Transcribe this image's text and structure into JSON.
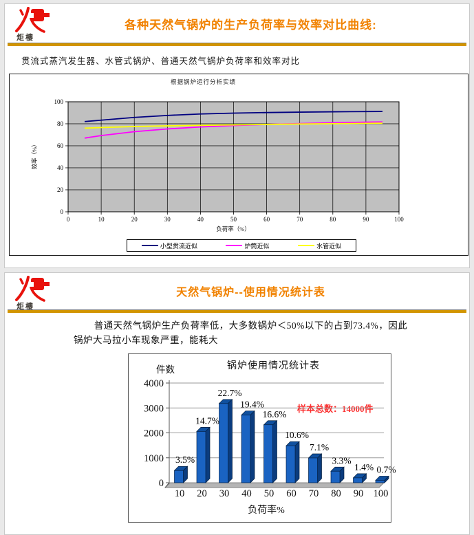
{
  "theme": {
    "page_bg": "#e9e9e9",
    "title_color": "#f18200",
    "rule_color": "#d29500",
    "logo_red": "#e8120c",
    "annotation_color": "#fb2f2f"
  },
  "logo": {
    "text": "炬樓"
  },
  "slide1": {
    "title": "各种天然气锅炉的生产负荷率与效率对比曲线:",
    "subtitle": "贯流式蒸汽发生器、水管式锅炉、普通天然气锅炉负荷率和效率对比"
  },
  "slide2": {
    "title": "天然气锅炉--使用情况统计表",
    "body_text": "普通天然气锅炉生产负荷率低，大多数锅炉＜50%以下的占到73.4%，因此锅炉大马拉小车现象严重，能耗大"
  },
  "chart_data": [
    {
      "type": "line",
      "title": "根据锅炉运行分析实绩",
      "xlabel": "负荷率（%）",
      "ylabel": "效率（%）",
      "xlim": [
        0,
        100
      ],
      "ylim": [
        0,
        100
      ],
      "x_ticks": [
        0,
        10,
        20,
        30,
        40,
        50,
        60,
        70,
        80,
        90,
        100
      ],
      "y_ticks": [
        0,
        20,
        40,
        60,
        80,
        100
      ],
      "plot_bg": "#c0c0c0",
      "grid": "vertical every 10, horizontal every 20",
      "legend_position": "bottom",
      "series": [
        {
          "name": "小型贯流近似",
          "color": "#000080",
          "points": [
            [
              5,
              82
            ],
            [
              10,
              83.3
            ],
            [
              20,
              85.8
            ],
            [
              30,
              87.6
            ],
            [
              40,
              88.9
            ],
            [
              50,
              89.7
            ],
            [
              60,
              90.2
            ],
            [
              70,
              90.6
            ],
            [
              80,
              90.9
            ],
            [
              90,
              91.1
            ],
            [
              95,
              91.2
            ]
          ]
        },
        {
          "name": "炉筒近似",
          "color": "#ff00ff",
          "points": [
            [
              5,
              67
            ],
            [
              10,
              69.3
            ],
            [
              20,
              72.8
            ],
            [
              30,
              75.3
            ],
            [
              40,
              77.1
            ],
            [
              50,
              78.4
            ],
            [
              60,
              79.4
            ],
            [
              70,
              80.2
            ],
            [
              80,
              80.9
            ],
            [
              90,
              81.5
            ],
            [
              95,
              81.7
            ]
          ]
        },
        {
          "name": "水管近似",
          "color": "#ffff00",
          "points": [
            [
              5,
              76
            ],
            [
              10,
              76.6
            ],
            [
              20,
              77.5
            ],
            [
              30,
              78.1
            ],
            [
              40,
              78.6
            ],
            [
              50,
              79
            ],
            [
              60,
              79.4
            ],
            [
              70,
              79.8
            ],
            [
              80,
              80.1
            ],
            [
              90,
              80.4
            ],
            [
              95,
              80.5
            ]
          ]
        }
      ]
    },
    {
      "type": "bar",
      "style": "3d",
      "title": "锅炉使用情况统计表",
      "xlabel": "负荷率%",
      "ylabel": "件数",
      "ylim": [
        0,
        4000
      ],
      "y_ticks": [
        0,
        1000,
        2000,
        3000,
        4000
      ],
      "categories": [
        10,
        20,
        30,
        40,
        50,
        60,
        70,
        80,
        90,
        100
      ],
      "values": [
        490,
        2058,
        3178,
        2716,
        2324,
        1484,
        994,
        462,
        196,
        98
      ],
      "labels": [
        "3.5%",
        "14.7%",
        "22.7%",
        "19.4%",
        "16.6%",
        "10.6%",
        "7.1%",
        "3.3%",
        "1.4%",
        "0.7%"
      ],
      "sample_total": 14000,
      "annotation": "样本总数：14000件",
      "bar_color": "#1a63c2",
      "bar_top_color": "#10509f",
      "bar_side_color": "#0b3c7e"
    }
  ]
}
